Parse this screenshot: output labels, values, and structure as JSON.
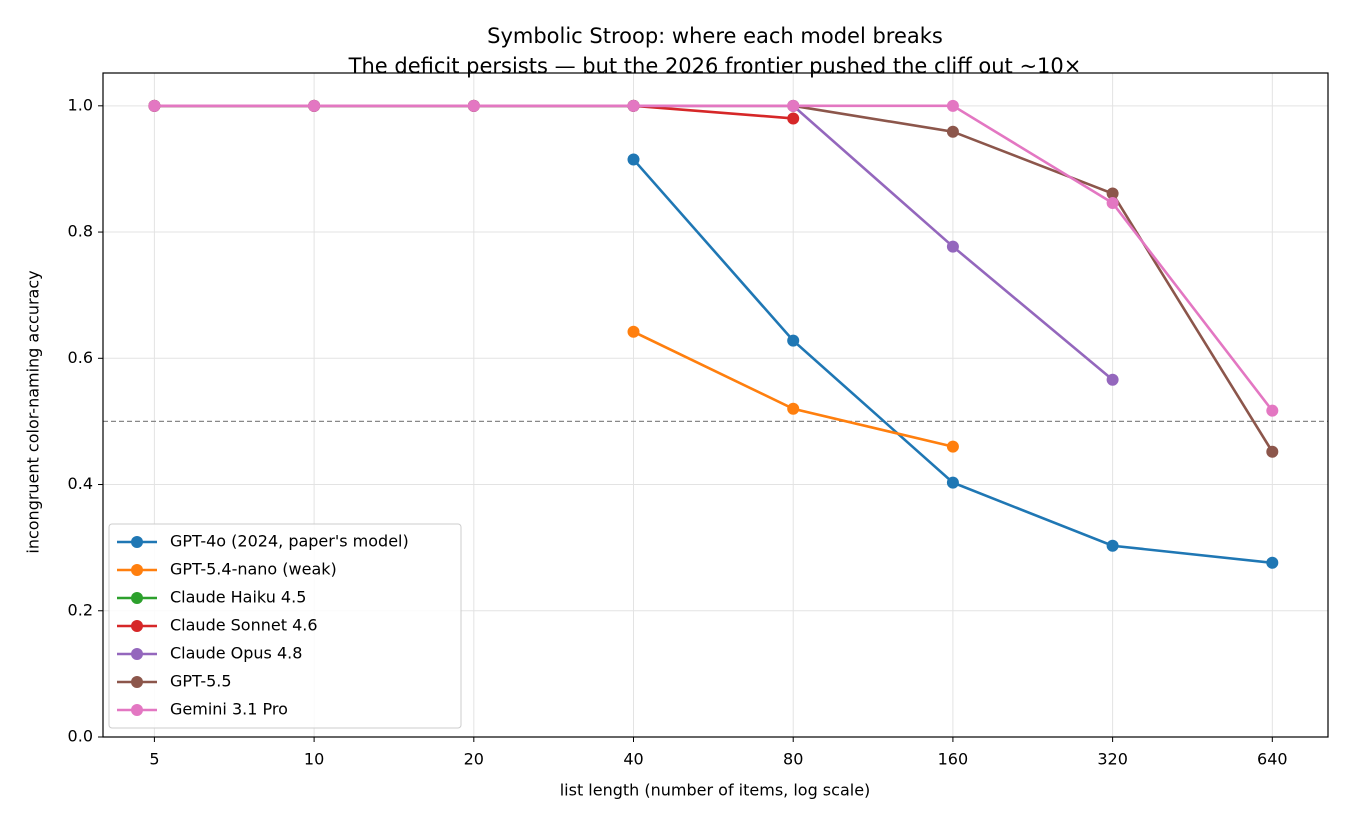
{
  "chart_data": {
    "type": "line",
    "title": "Symbolic Stroop: where each model breaks",
    "subtitle": "The deficit persists — but the 2026 frontier pushed the cliff out ~10×",
    "x_label": "list length (number of items, log scale)",
    "y_label": "incongruent color-naming accuracy",
    "x": [
      5,
      10,
      20,
      40,
      80,
      160,
      320,
      640
    ],
    "series": [
      {
        "name": "GPT-4o (2024, paper's model)",
        "color": "#1f77b4",
        "values": [
          null,
          null,
          null,
          0.915,
          0.628,
          0.403,
          0.303,
          0.276
        ]
      },
      {
        "name": "GPT-5.4-nano (weak)",
        "color": "#ff7f0e",
        "values": [
          null,
          null,
          null,
          0.642,
          0.52,
          0.46,
          null,
          null
        ]
      },
      {
        "name": "Claude Haiku 4.5",
        "color": "#2ca02c",
        "values": [
          1.0,
          1.0,
          1.0,
          1.0,
          null,
          null,
          null,
          null
        ]
      },
      {
        "name": "Claude Sonnet 4.6",
        "color": "#d62728",
        "values": [
          1.0,
          1.0,
          1.0,
          1.0,
          0.98,
          null,
          null,
          null
        ]
      },
      {
        "name": "Claude Opus 4.8",
        "color": "#9467bd",
        "values": [
          1.0,
          1.0,
          1.0,
          1.0,
          1.0,
          0.777,
          0.566,
          null
        ]
      },
      {
        "name": "GPT-5.5",
        "color": "#8c564b",
        "values": [
          1.0,
          1.0,
          1.0,
          1.0,
          1.0,
          0.959,
          0.861,
          0.452
        ]
      },
      {
        "name": "Gemini 3.1 Pro",
        "color": "#e377c2",
        "values": [
          1.0,
          1.0,
          1.0,
          1.0,
          1.0,
          1.0,
          0.846,
          0.517
        ]
      }
    ],
    "xscale": "log",
    "xlim": [
      4,
      815
    ],
    "xticks": [
      5,
      10,
      20,
      40,
      80,
      160,
      320,
      640
    ],
    "ylim": [
      0,
      1.052
    ],
    "yticks": [
      {
        "value": 0,
        "label": "0.0"
      },
      0.2,
      0.4,
      0.6,
      0.8,
      {
        "value": 1,
        "label": "1.0"
      }
    ],
    "hline": 0.5,
    "grid": true,
    "legend": "lower left"
  }
}
